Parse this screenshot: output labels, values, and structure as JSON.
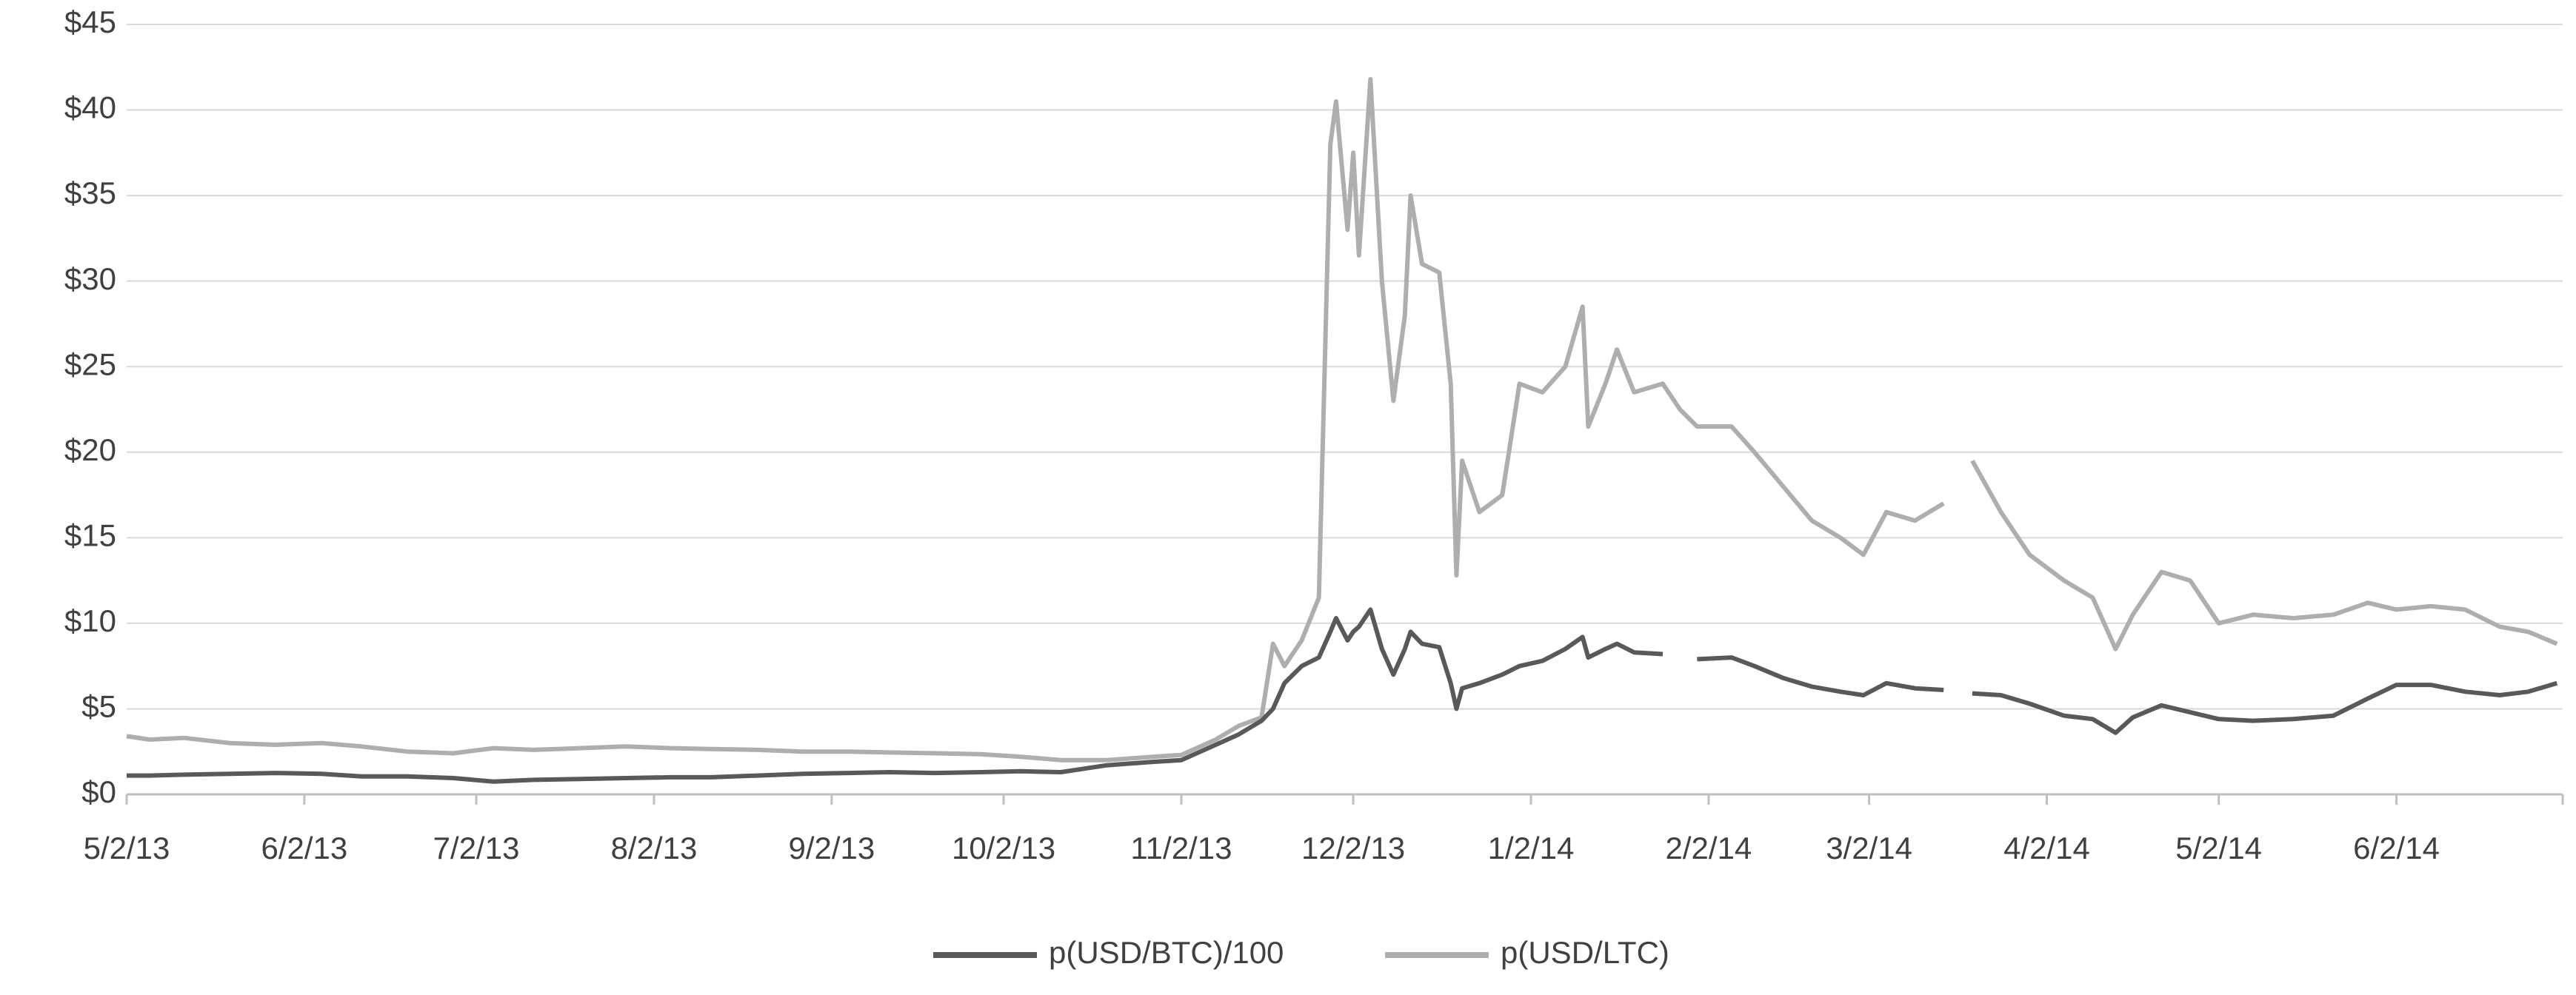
{
  "chart_data": {
    "type": "line",
    "x": [
      "2013-05-02",
      "2013-05-06",
      "2013-05-12",
      "2013-05-20",
      "2013-05-28",
      "2013-06-05",
      "2013-06-12",
      "2013-06-20",
      "2013-06-28",
      "2013-07-05",
      "2013-07-12",
      "2013-07-20",
      "2013-07-28",
      "2013-08-05",
      "2013-08-12",
      "2013-08-20",
      "2013-08-28",
      "2013-09-05",
      "2013-09-12",
      "2013-09-20",
      "2013-09-28",
      "2013-10-05",
      "2013-10-12",
      "2013-10-20",
      "2013-10-28",
      "2013-11-02",
      "2013-11-08",
      "2013-11-12",
      "2013-11-16",
      "2013-11-18",
      "2013-11-20",
      "2013-11-23",
      "2013-11-26",
      "2013-11-28",
      "2013-11-29",
      "2013-12-01",
      "2013-12-02",
      "2013-12-03",
      "2013-12-05",
      "2013-12-07",
      "2013-12-09",
      "2013-12-11",
      "2013-12-12",
      "2013-12-14",
      "2013-12-17",
      "2013-12-19",
      "2013-12-20",
      "2013-12-21",
      "2013-12-24",
      "2013-12-28",
      "2013-12-31",
      "2014-01-04",
      "2014-01-08",
      "2014-01-11",
      "2014-01-12",
      "2014-01-15",
      "2014-01-17",
      "2014-01-20",
      "2014-01-25",
      "2014-01-28",
      "2014-01-31",
      "2014-02-06",
      "2014-02-10",
      "2014-02-15",
      "2014-02-20",
      "2014-02-25",
      "2014-03-01",
      "2014-03-05",
      "2014-03-10",
      "2014-03-15",
      "2014-03-18",
      "2014-03-20",
      "2014-03-25",
      "2014-03-30",
      "2014-04-05",
      "2014-04-10",
      "2014-04-14",
      "2014-04-17",
      "2014-04-22",
      "2014-04-27",
      "2014-05-02",
      "2014-05-08",
      "2014-05-15",
      "2014-05-22",
      "2014-05-28",
      "2014-06-02",
      "2014-06-08",
      "2014-06-14",
      "2014-06-20",
      "2014-06-25",
      "2014-06-30"
    ],
    "series": [
      {
        "name": "p(USD/BTC)/100",
        "color": "#595959",
        "values": [
          1.1,
          1.1,
          1.15,
          1.2,
          1.25,
          1.2,
          1.05,
          1.05,
          0.95,
          0.75,
          0.85,
          0.9,
          0.95,
          1.0,
          1.0,
          1.1,
          1.2,
          1.25,
          1.3,
          1.25,
          1.3,
          1.35,
          1.3,
          1.7,
          1.9,
          2.0,
          2.9,
          3.5,
          4.3,
          5.0,
          6.5,
          7.5,
          8.0,
          9.5,
          10.3,
          9.0,
          9.5,
          9.8,
          10.8,
          8.5,
          7.0,
          8.5,
          9.5,
          8.8,
          8.6,
          6.5,
          5.0,
          6.2,
          6.5,
          7.0,
          7.5,
          7.8,
          8.5,
          9.2,
          8.0,
          8.5,
          8.8,
          8.3,
          8.2,
          null,
          7.9,
          8.0,
          7.5,
          6.8,
          6.3,
          6.0,
          5.8,
          6.5,
          6.2,
          6.1,
          null,
          5.9,
          5.8,
          5.3,
          4.6,
          4.4,
          3.6,
          4.5,
          5.2,
          4.8,
          4.4,
          4.3,
          4.4,
          4.6,
          5.6,
          6.4,
          6.4,
          6.0,
          5.8,
          6.0,
          6.5
        ]
      },
      {
        "name": "p(USD/LTC)",
        "color": "#aeaeae",
        "values": [
          3.4,
          3.2,
          3.3,
          3.0,
          2.9,
          3.0,
          2.8,
          2.5,
          2.4,
          2.7,
          2.6,
          2.7,
          2.8,
          2.7,
          2.65,
          2.6,
          2.5,
          2.5,
          2.45,
          2.4,
          2.35,
          2.2,
          2.0,
          2.0,
          2.2,
          2.3,
          3.2,
          4.0,
          4.5,
          8.8,
          7.5,
          9.0,
          11.5,
          38.0,
          40.5,
          33.0,
          37.5,
          31.5,
          41.8,
          30.0,
          23.0,
          28.0,
          35.0,
          31.0,
          30.5,
          24.0,
          12.8,
          19.5,
          16.5,
          17.5,
          24.0,
          23.5,
          25.0,
          28.5,
          21.5,
          24.0,
          26.0,
          23.5,
          24.0,
          22.5,
          21.5,
          21.5,
          20.0,
          18.0,
          16.0,
          15.0,
          14.0,
          16.5,
          16.0,
          17.0,
          null,
          19.5,
          16.5,
          14.0,
          12.5,
          11.5,
          8.5,
          10.5,
          13.0,
          12.5,
          10.0,
          10.5,
          10.3,
          10.5,
          11.2,
          10.8,
          11.0,
          10.8,
          9.8,
          9.5,
          8.8
        ]
      }
    ],
    "xlim": [
      "2013-05-02",
      "2014-07-01"
    ],
    "xticks": [
      {
        "value": "2013-05-02",
        "label": "5/2/13"
      },
      {
        "value": "2013-06-02",
        "label": "6/2/13"
      },
      {
        "value": "2013-07-02",
        "label": "7/2/13"
      },
      {
        "value": "2013-08-02",
        "label": "8/2/13"
      },
      {
        "value": "2013-09-02",
        "label": "9/2/13"
      },
      {
        "value": "2013-10-02",
        "label": "10/2/13"
      },
      {
        "value": "2013-11-02",
        "label": "11/2/13"
      },
      {
        "value": "2013-12-02",
        "label": "12/2/13"
      },
      {
        "value": "2014-01-02",
        "label": "1/2/14"
      },
      {
        "value": "2014-02-02",
        "label": "2/2/14"
      },
      {
        "value": "2014-03-02",
        "label": "3/2/14"
      },
      {
        "value": "2014-04-02",
        "label": "4/2/14"
      },
      {
        "value": "2014-05-02",
        "label": "5/2/14"
      },
      {
        "value": "2014-06-02",
        "label": "6/2/14"
      }
    ],
    "ylim": [
      0,
      45
    ],
    "yticks": [
      {
        "value": 0,
        "label": "$0"
      },
      {
        "value": 5,
        "label": "$5"
      },
      {
        "value": 10,
        "label": "$10"
      },
      {
        "value": 15,
        "label": "$15"
      },
      {
        "value": 20,
        "label": "$20"
      },
      {
        "value": 25,
        "label": "$25"
      },
      {
        "value": 30,
        "label": "$30"
      },
      {
        "value": 35,
        "label": "$35"
      },
      {
        "value": 40,
        "label": "$40"
      },
      {
        "value": 45,
        "label": "$45"
      }
    ],
    "grid": true,
    "legend": "bottom"
  }
}
